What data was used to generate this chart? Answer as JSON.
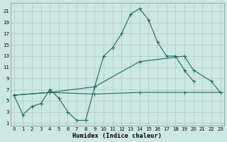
{
  "bg_color": "#cce8e4",
  "grid_color": "#b8b8b8",
  "line_color": "#1a6b5a",
  "xlim_min": -0.4,
  "xlim_max": 23.4,
  "ylim_min": 0.5,
  "ylim_max": 22.5,
  "xticks": [
    0,
    1,
    2,
    3,
    4,
    5,
    6,
    7,
    8,
    9,
    10,
    11,
    12,
    13,
    14,
    15,
    16,
    17,
    18,
    19,
    20,
    21,
    22,
    23
  ],
  "yticks": [
    1,
    3,
    5,
    7,
    9,
    11,
    13,
    15,
    17,
    19,
    21
  ],
  "xlabel": "Humidex (Indice chaleur)",
  "line1_x": [
    0,
    1,
    2,
    3,
    4,
    5,
    6,
    7,
    8,
    9,
    10,
    11,
    12,
    13,
    14,
    15,
    16,
    17,
    18,
    19,
    20
  ],
  "line1_y": [
    6,
    2.5,
    4,
    4.5,
    7,
    5.5,
    3,
    1.5,
    1.5,
    7.5,
    13,
    14.5,
    17,
    20.5,
    21.5,
    19.5,
    15.5,
    13,
    13,
    10.5,
    8.5
  ],
  "line2_x": [
    0,
    4,
    9,
    14,
    19,
    23
  ],
  "line2_y": [
    6,
    6.5,
    6.2,
    6.5,
    6.5,
    6.5
  ],
  "line3_x": [
    0,
    4,
    9,
    14,
    19,
    20,
    22,
    23
  ],
  "line3_y": [
    6,
    6.5,
    7.5,
    12,
    13,
    10.5,
    8.5,
    6.5
  ]
}
